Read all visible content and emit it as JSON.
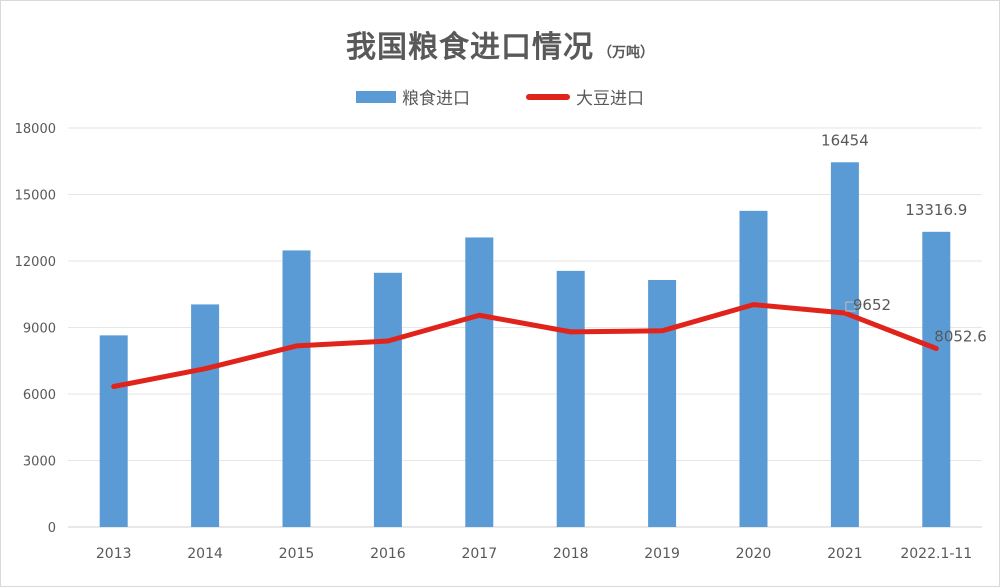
{
  "chart_data": {
    "type": "bar",
    "title": "我国粮食进口情况",
    "subtitle": "（万吨）",
    "categories": [
      "2013",
      "2014",
      "2015",
      "2016",
      "2017",
      "2018",
      "2019",
      "2020",
      "2021",
      "2022.1-11"
    ],
    "series": [
      {
        "name": "粮食进口",
        "type": "bar",
        "color": "#5b9bd5",
        "values": [
          8645,
          10042,
          12477,
          11468,
          13062,
          11555,
          11144,
          14262,
          16454,
          13316.9
        ],
        "data_labels": [
          null,
          null,
          null,
          null,
          null,
          null,
          null,
          null,
          "16454",
          "13316.9"
        ]
      },
      {
        "name": "大豆进口",
        "type": "line",
        "color": "#e0241b",
        "values": [
          6338,
          7140,
          8169,
          8391,
          9553,
          8803,
          8851,
          10033,
          9652,
          8052.6
        ],
        "data_labels": [
          null,
          null,
          null,
          null,
          null,
          null,
          null,
          null,
          "9652",
          "8052.6"
        ]
      }
    ],
    "ylim": [
      0,
      18000
    ],
    "yticks": [
      "0",
      "3000",
      "6000",
      "9000",
      "12000",
      "15000",
      "18000"
    ],
    "grid": true,
    "legend": "top"
  }
}
